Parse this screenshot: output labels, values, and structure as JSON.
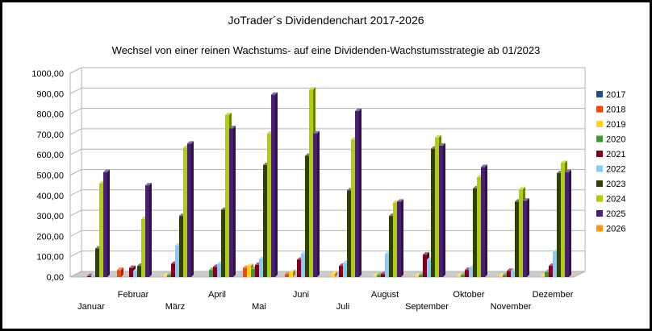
{
  "chart_data": {
    "type": "bar",
    "title": "JoTrader´s Dividendenchart 2017-2026",
    "subtitle": "Wechsel von einer reinen Wachstums- auf eine Dividenden-Wachstumsstrategie ab 01/2023",
    "categories": [
      "Januar",
      "Februar",
      "März",
      "April",
      "Mai",
      "Juni",
      "Juli",
      "August",
      "September",
      "Oktober",
      "November",
      "Dezember"
    ],
    "ylim": [
      0,
      1000
    ],
    "yticks": [
      "0,00",
      "100,00",
      "200,00",
      "300,00",
      "400,00",
      "500,00",
      "600,00",
      "700,00",
      "800,00",
      "900,00",
      "1000,00"
    ],
    "legend_position": "right",
    "grid": true,
    "series": [
      {
        "name": "2017",
        "color": "#1f4e8c",
        "values": [
          0,
          0,
          0,
          0,
          0,
          0,
          0,
          0,
          0,
          0,
          0,
          0
        ]
      },
      {
        "name": "2018",
        "color": "#ff4500",
        "values": [
          0,
          35,
          0,
          0,
          45,
          15,
          0,
          0,
          0,
          0,
          0,
          0
        ]
      },
      {
        "name": "2019",
        "color": "#ffd320",
        "values": [
          0,
          0,
          5,
          0,
          55,
          25,
          15,
          5,
          5,
          5,
          5,
          5
        ]
      },
      {
        "name": "2020",
        "color": "#3a9a2e",
        "values": [
          0,
          0,
          10,
          35,
          40,
          0,
          0,
          10,
          10,
          10,
          10,
          25
        ]
      },
      {
        "name": "2021",
        "color": "#7e0021",
        "values": [
          5,
          45,
          65,
          50,
          60,
          85,
          55,
          15,
          110,
          35,
          30,
          55
        ]
      },
      {
        "name": "2022",
        "color": "#83caff",
        "values": [
          10,
          30,
          155,
          65,
          90,
          115,
          70,
          115,
          85,
          45,
          30,
          125
        ]
      },
      {
        "name": "2023",
        "color": "#314004",
        "values": [
          140,
          55,
          300,
          330,
          550,
          595,
          425,
          300,
          630,
          435,
          370,
          510
        ]
      },
      {
        "name": "2024",
        "color": "#aecf00",
        "values": [
          460,
          285,
          635,
          795,
          705,
          920,
          675,
          365,
          685,
          490,
          430,
          560
        ]
      },
      {
        "name": "2025",
        "color": "#4b1f6f",
        "values": [
          515,
          450,
          655,
          730,
          895,
          705,
          815,
          370,
          645,
          540,
          375,
          515
        ]
      },
      {
        "name": "2026",
        "color": "#ff950e",
        "values": [
          0,
          0,
          0,
          0,
          0,
          0,
          0,
          0,
          0,
          0,
          0,
          0
        ]
      }
    ]
  }
}
